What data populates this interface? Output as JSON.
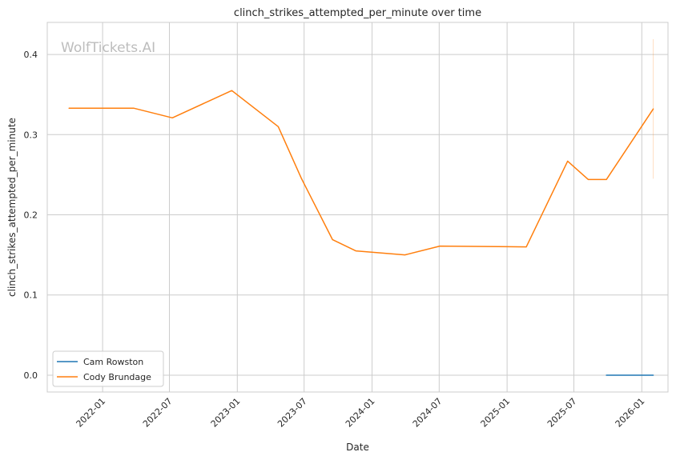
{
  "watermark": "WolfTickets.AI",
  "chart_data": {
    "type": "line",
    "title": "clinch_strikes_attempted_per_minute over time",
    "xlabel": "Date",
    "ylabel": "clinch_strikes_attempted_per_minute",
    "xlim": [
      "2021-08-04",
      "2026-03-13"
    ],
    "ylim": [
      -0.021,
      0.44
    ],
    "grid": true,
    "legend_position": "lower-left",
    "x_ticks": [
      "2022-01",
      "2022-07",
      "2023-01",
      "2023-07",
      "2024-01",
      "2024-07",
      "2025-01",
      "2025-07",
      "2026-01"
    ],
    "y_ticks": [
      0.0,
      0.1,
      0.2,
      0.3,
      0.4
    ],
    "series": [
      {
        "name": "Cam Rowston",
        "color": "#1f77b4",
        "x": [
          "2025-09-27",
          "2026-02-01"
        ],
        "y": [
          0.0,
          0.0
        ]
      },
      {
        "name": "Cody Brundage",
        "color": "#ff7f0e",
        "x": [
          "2021-10-02",
          "2022-03-26",
          "2022-07-09",
          "2022-12-17",
          "2023-04-22",
          "2023-06-24",
          "2023-09-16",
          "2023-11-18",
          "2024-03-30",
          "2024-07-03",
          "2025-02-22",
          "2025-06-14",
          "2025-08-09",
          "2025-09-27",
          "2026-02-01"
        ],
        "y": [
          0.333,
          0.333,
          0.321,
          0.355,
          0.31,
          0.245,
          0.169,
          0.155,
          0.15,
          0.161,
          0.16,
          0.267,
          0.244,
          0.244,
          0.332
        ]
      }
    ],
    "error_band": {
      "series": "Cody Brundage",
      "x": "2026-02-01",
      "y_low": 0.245,
      "y_high": 0.419
    }
  }
}
